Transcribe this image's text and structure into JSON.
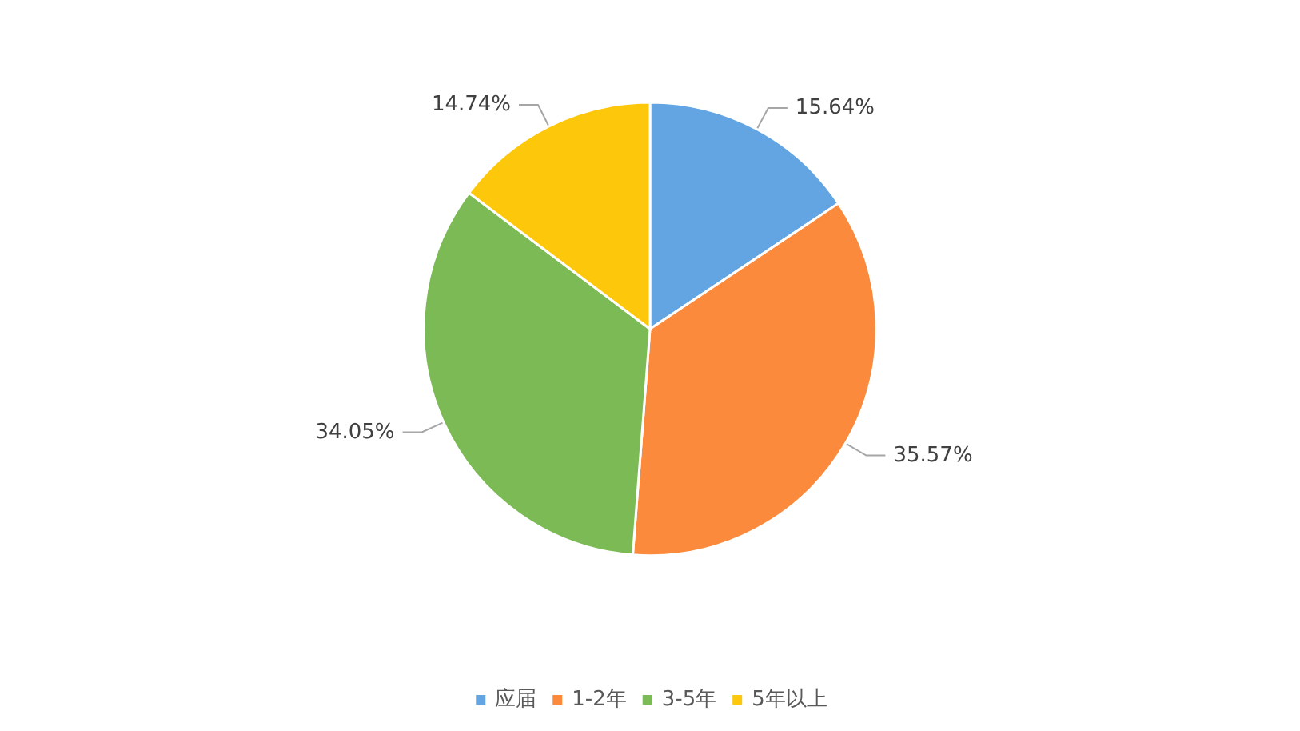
{
  "chart_data": {
    "type": "pie",
    "categories": [
      "应届",
      "1-2年",
      "3-5年",
      "5年以上"
    ],
    "values": [
      15.64,
      35.57,
      34.05,
      14.74
    ],
    "colors": [
      "#62a5e2",
      "#fb8a3c",
      "#7cba55",
      "#fdc70c"
    ],
    "value_labels": [
      "15.64%",
      "35.57%",
      "34.05%",
      "14.74%"
    ],
    "legend": "bottom"
  }
}
